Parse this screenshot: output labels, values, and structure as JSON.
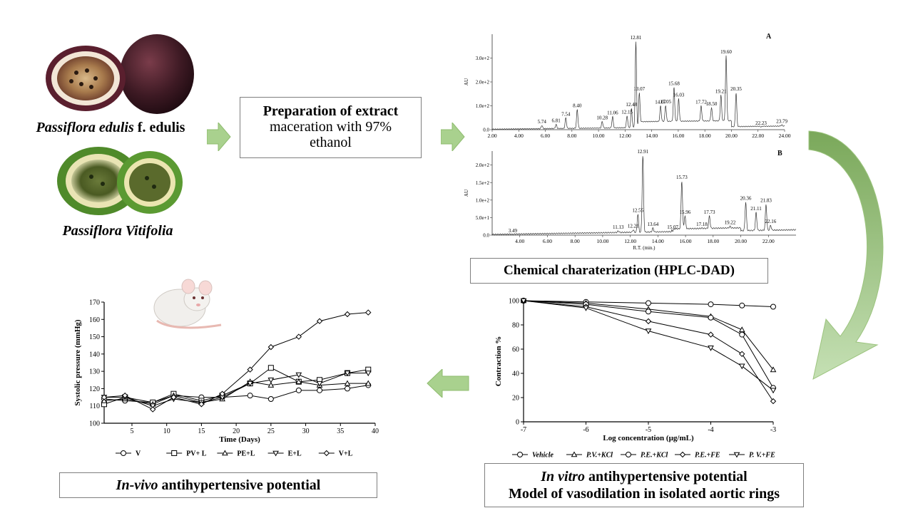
{
  "species": {
    "first": {
      "genus_species": "Passiflora edulis",
      "form": "f. edulis"
    },
    "second": "Passiflora Vitifolia"
  },
  "preparation": {
    "title": "Preparation of extract",
    "line2": "maceration with 97%",
    "line3": "ethanol"
  },
  "hplc_label": "Chemical charaterization (HPLC-DAD)",
  "invitro_label": {
    "italic": "In vitro",
    "rest": "antihypertensive potential",
    "line2": "Model of vasodilation in isolated aortic rings"
  },
  "invivo_label": {
    "italic": "In-vivo",
    "rest": "antihypertensive potential"
  },
  "colors": {
    "arrow_fill": "#a9d18e",
    "arrow_stroke": "#8fbc6f",
    "curve_dark": "#7aa85a",
    "curve_light": "#c5e0b4",
    "box_border": "#7f7f7f"
  },
  "chart_data": [
    {
      "type": "line",
      "panel": "A",
      "ylabel": "AU",
      "xlabel": "",
      "xlim": [
        2.0,
        24.0
      ],
      "ylim": [
        0,
        400
      ],
      "x_ticks": [
        "2.00",
        "4.00",
        "6.00",
        "8.00",
        "10.00",
        "12.00",
        "14.00",
        "16.00",
        "18.00",
        "20.00",
        "22.00",
        "24.00"
      ],
      "y_ticks": [
        {
          "v": 0,
          "t": "0.0"
        },
        {
          "v": 100,
          "t": "1.0e+2"
        },
        {
          "v": 200,
          "t": "2.0e+2"
        },
        {
          "v": 300,
          "t": "3.0e+2"
        }
      ],
      "peaks": [
        {
          "x": 5.74,
          "y": 18,
          "label": "5.74"
        },
        {
          "x": 6.81,
          "y": 22,
          "label": "6.81"
        },
        {
          "x": 7.54,
          "y": 50,
          "label": "7.54"
        },
        {
          "x": 8.4,
          "y": 85,
          "label": "8.40"
        },
        {
          "x": 10.28,
          "y": 35,
          "label": "10.28"
        },
        {
          "x": 11.06,
          "y": 55,
          "label": "11.06"
        },
        {
          "x": 12.15,
          "y": 58,
          "label": "12.15"
        },
        {
          "x": 12.48,
          "y": 90,
          "label": "12.48"
        },
        {
          "x": 12.81,
          "y": 370,
          "label": "12.81"
        },
        {
          "x": 13.07,
          "y": 155,
          "label": "13.07"
        },
        {
          "x": 14.67,
          "y": 100,
          "label": "14.67"
        },
        {
          "x": 15.05,
          "y": 102,
          "label": "15.05"
        },
        {
          "x": 15.68,
          "y": 178,
          "label": "15.68"
        },
        {
          "x": 16.03,
          "y": 130,
          "label": "16.03"
        },
        {
          "x": 17.72,
          "y": 100,
          "label": "17.72"
        },
        {
          "x": 18.5,
          "y": 92,
          "label": "18.50"
        },
        {
          "x": 19.21,
          "y": 145,
          "label": "19.21"
        },
        {
          "x": 19.6,
          "y": 310,
          "label": "19.60"
        },
        {
          "x": 20.35,
          "y": 155,
          "label": "20.35"
        },
        {
          "x": 22.23,
          "y": 12,
          "label": "22.23"
        },
        {
          "x": 23.79,
          "y": 20,
          "label": "23.79"
        }
      ]
    },
    {
      "type": "line",
      "panel": "B",
      "ylabel": "AU",
      "xlabel": "R.T. (min.)",
      "xlim": [
        2.0,
        24.0
      ],
      "ylim": [
        0,
        240
      ],
      "x_ticks": [
        "4.00",
        "6.00",
        "8.00",
        "10.00",
        "12.00",
        "14.00",
        "16.00",
        "18.00",
        "20.00",
        "22.00"
      ],
      "y_ticks": [
        {
          "v": 0,
          "t": "0.0"
        },
        {
          "v": 50,
          "t": "5.0e+1"
        },
        {
          "v": 100,
          "t": "1.0e+2"
        },
        {
          "v": 150,
          "t": "1.5e+2"
        },
        {
          "v": 200,
          "t": "2.0e+2"
        }
      ],
      "peaks": [
        {
          "x": 3.49,
          "y": 2,
          "label": "3.49"
        },
        {
          "x": 11.13,
          "y": 12,
          "label": "11.13"
        },
        {
          "x": 12.21,
          "y": 15,
          "label": "12.21"
        },
        {
          "x": 12.55,
          "y": 60,
          "label": "12.55"
        },
        {
          "x": 12.91,
          "y": 228,
          "label": "12.91"
        },
        {
          "x": 13.64,
          "y": 20,
          "label": "13.64"
        },
        {
          "x": 15.07,
          "y": 12,
          "label": "15.07"
        },
        {
          "x": 15.73,
          "y": 155,
          "label": "15.73"
        },
        {
          "x": 15.96,
          "y": 55,
          "label": "15.96"
        },
        {
          "x": 17.18,
          "y": 20,
          "label": "17.18"
        },
        {
          "x": 17.73,
          "y": 55,
          "label": "17.73"
        },
        {
          "x": 19.22,
          "y": 25,
          "label": "19.22"
        },
        {
          "x": 20.36,
          "y": 95,
          "label": "20.36"
        },
        {
          "x": 21.11,
          "y": 65,
          "label": "21.11"
        },
        {
          "x": 21.83,
          "y": 88,
          "label": "21.83"
        },
        {
          "x": 22.16,
          "y": 28,
          "label": "22.16"
        }
      ]
    },
    {
      "type": "line",
      "panel": "in-vivo",
      "xlabel": "Time (Days)",
      "ylabel": "Systolic pressure (mmHg)",
      "xlim": [
        1,
        40
      ],
      "ylim": [
        100,
        170
      ],
      "x_ticks": [
        5,
        10,
        15,
        20,
        25,
        30,
        35,
        40
      ],
      "y_ticks": [
        100,
        110,
        120,
        130,
        140,
        150,
        160,
        170
      ],
      "x": [
        1,
        4,
        8,
        11,
        15,
        18,
        22,
        25,
        29,
        32,
        36,
        39
      ],
      "series": [
        {
          "name": "V",
          "marker": "circle",
          "values": [
            114,
            113,
            112,
            116,
            115,
            115,
            116,
            114,
            119,
            119,
            120,
            122
          ]
        },
        {
          "name": "PV+ L",
          "marker": "square",
          "values": [
            111,
            115,
            112,
            117,
            113,
            116,
            123,
            132,
            124,
            125,
            129,
            131
          ]
        },
        {
          "name": "PE+L",
          "marker": "triangle-up",
          "values": [
            113,
            114,
            111,
            116,
            112,
            114,
            124,
            122,
            124,
            122,
            123,
            123
          ]
        },
        {
          "name": "E+L",
          "marker": "triangle-down",
          "values": [
            115,
            115,
            110,
            114,
            112,
            115,
            123,
            125,
            128,
            123,
            129,
            129
          ]
        },
        {
          "name": "V+L",
          "marker": "diamond",
          "values": [
            115,
            116,
            108,
            115,
            111,
            117,
            131,
            144,
            150,
            159,
            163,
            164
          ]
        }
      ]
    },
    {
      "type": "line",
      "panel": "in-vitro",
      "xlabel": "Log concentration (µg/mL)",
      "ylabel": "Contraction %",
      "xlim": [
        -7,
        -3
      ],
      "ylim": [
        0,
        100
      ],
      "x_ticks": [
        -7,
        -6,
        -5,
        -4,
        -3
      ],
      "y_ticks": [
        0,
        20,
        40,
        60,
        80,
        100
      ],
      "x": [
        -7,
        -6,
        -5,
        -4,
        -3.5,
        -3
      ],
      "series": [
        {
          "name": "Vehicle",
          "marker": "circle",
          "values": [
            100,
            99,
            98,
            97,
            96,
            95
          ]
        },
        {
          "name": "P.V.+KCl",
          "marker": "triangle-up",
          "values": [
            100,
            98,
            93,
            87,
            76,
            43
          ]
        },
        {
          "name": "P.E.+KCl",
          "marker": "circle",
          "values": [
            100,
            97,
            91,
            86,
            72,
            28
          ]
        },
        {
          "name": "P.E.+FE",
          "marker": "diamond",
          "values": [
            100,
            95,
            83,
            72,
            56,
            17
          ]
        },
        {
          "name": "P. V.+FE",
          "marker": "triangle-down",
          "values": [
            100,
            94,
            75,
            61,
            46,
            26
          ]
        }
      ]
    }
  ]
}
